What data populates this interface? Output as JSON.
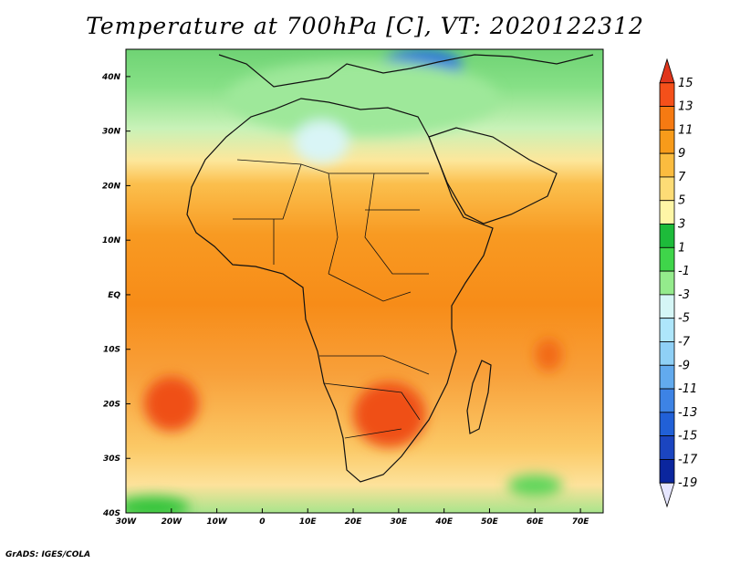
{
  "title": "Temperature at 700hPa [C], VT: 2020122312",
  "credit": "GrADS: IGES/COLA",
  "map": {
    "projection": "latlon",
    "lon_range": [
      -30,
      75
    ],
    "lat_range": [
      -40,
      45
    ],
    "lat_labels": [
      "40N",
      "30N",
      "20N",
      "10N",
      "EQ",
      "10S",
      "20S",
      "30S",
      "40S"
    ],
    "lat_values": [
      40,
      30,
      20,
      10,
      0,
      -10,
      -20,
      -30,
      -40
    ],
    "lon_labels": [
      "30W",
      "20W",
      "10W",
      "0",
      "10E",
      "20E",
      "30E",
      "40E",
      "50E",
      "60E",
      "70E"
    ],
    "lon_values": [
      -30,
      -20,
      -10,
      0,
      10,
      20,
      30,
      40,
      50,
      60,
      70
    ],
    "features": [
      {
        "name": "cold-north-mediterranean",
        "lon": 35,
        "lat": 42,
        "rx": 9,
        "ry": 3,
        "color": "#1e6ee0"
      },
      {
        "name": "cool-north-band",
        "lon": 22,
        "lat": 36,
        "rx": 30,
        "ry": 7,
        "color": "#9ee89a"
      },
      {
        "name": "cool-sahara-patch",
        "lon": 13,
        "lat": 28,
        "rx": 6,
        "ry": 4,
        "color": "#d9f5f6"
      },
      {
        "name": "warm-southern-africa",
        "lon": 28,
        "lat": -22,
        "rx": 8,
        "ry": 6,
        "color": "#ef4f14"
      },
      {
        "name": "warm-south-atlantic",
        "lon": -20,
        "lat": -20,
        "rx": 6,
        "ry": 5,
        "color": "#ef4f14"
      },
      {
        "name": "warm-indian-ocean",
        "lon": 63,
        "lat": -11,
        "rx": 3,
        "ry": 3,
        "color": "#f26a16"
      },
      {
        "name": "cool-southern-ocean-east",
        "lon": 60,
        "lat": -35,
        "rx": 6,
        "ry": 2,
        "color": "#5dd65a"
      },
      {
        "name": "cool-southern-ocean-west",
        "lon": -24,
        "lat": -39,
        "rx": 8,
        "ry": 2,
        "color": "#34c43a"
      }
    ]
  },
  "colorbar": {
    "levels": [
      "15",
      "13",
      "11",
      "9",
      "7",
      "5",
      "3",
      "1",
      "-1",
      "-3",
      "-5",
      "-7",
      "-9",
      "-11",
      "-13",
      "-15",
      "-17",
      "-19"
    ],
    "colors": [
      "#e0361c",
      "#f4501a",
      "#f67a12",
      "#f79b1a",
      "#fbbc3f",
      "#fddc76",
      "#fef6a6",
      "#1dbb3a",
      "#3fd54a",
      "#94eb8c",
      "#d5f6f6",
      "#aee6fb",
      "#8fd0f6",
      "#62aaee",
      "#3d83e5",
      "#2160d7",
      "#1b45c0",
      "#0b269e",
      "#e6e6ff"
    ]
  }
}
